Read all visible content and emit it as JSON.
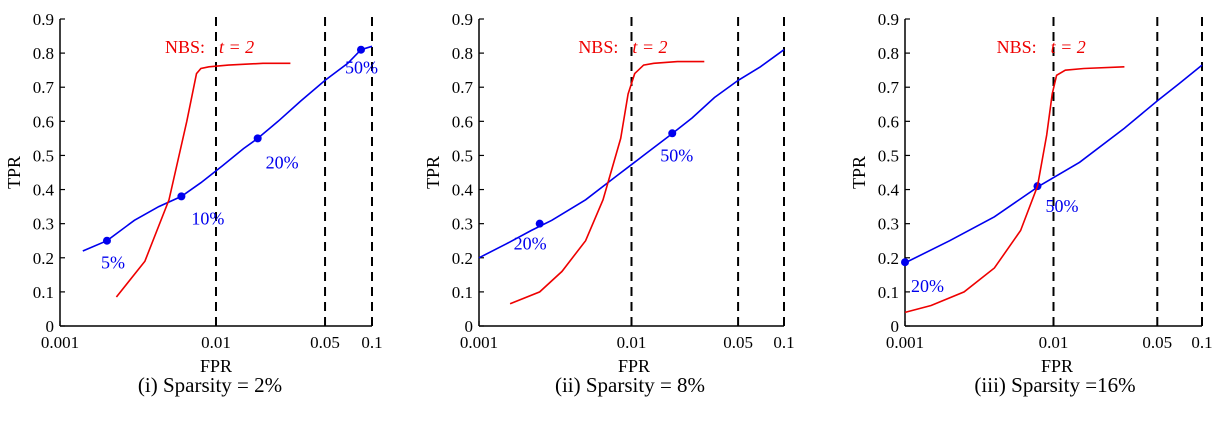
{
  "chart_data": [
    {
      "type": "line",
      "caption": "(i) Sparsity = 2%",
      "xlabel": "FPR",
      "ylabel": "TPR",
      "x_scale": "log",
      "xlim": [
        0.001,
        0.1
      ],
      "ylim": [
        0,
        0.9
      ],
      "x_ticks": [
        "0.001",
        "0.01",
        "0.05",
        "0.1"
      ],
      "y_ticks": [
        "0",
        "0.1",
        "0.2",
        "0.3",
        "0.4",
        "0.5",
        "0.6",
        "0.7",
        "0.8",
        "0.9"
      ],
      "vlines": [
        0.01,
        0.05,
        0.1
      ],
      "annotation": {
        "prefix": "NBS:",
        "t_label": "t = 2"
      },
      "series": [
        {
          "color": "#0000ee",
          "x": [
            0.0014,
            0.002,
            0.003,
            0.0043,
            0.006,
            0.008,
            0.011,
            0.015,
            0.0185,
            0.025,
            0.035,
            0.05,
            0.07,
            0.085,
            0.1
          ],
          "y": [
            0.22,
            0.25,
            0.31,
            0.35,
            0.38,
            0.42,
            0.47,
            0.52,
            0.55,
            0.6,
            0.66,
            0.72,
            0.77,
            0.81,
            0.82
          ],
          "markers": [
            {
              "x": 0.002,
              "y": 0.25,
              "label": "5%"
            },
            {
              "x": 0.006,
              "y": 0.38,
              "label": "10%"
            },
            {
              "x": 0.0185,
              "y": 0.55,
              "label": "20%"
            },
            {
              "x": 0.085,
              "y": 0.81,
              "label": "50%"
            }
          ]
        },
        {
          "color": "#ee0000",
          "x": [
            0.0023,
            0.0035,
            0.005,
            0.0065,
            0.0075,
            0.008,
            0.009,
            0.012,
            0.02,
            0.03
          ],
          "y": [
            0.085,
            0.19,
            0.37,
            0.6,
            0.74,
            0.755,
            0.76,
            0.765,
            0.77,
            0.77
          ]
        }
      ]
    },
    {
      "type": "line",
      "caption": "(ii) Sparsity = 8%",
      "xlabel": "FPR",
      "ylabel": "TPR",
      "x_scale": "log",
      "xlim": [
        0.001,
        0.1
      ],
      "ylim": [
        0,
        0.9
      ],
      "x_ticks": [
        "0.001",
        "0.01",
        "0.05",
        "0.1"
      ],
      "y_ticks": [
        "0",
        "0.1",
        "0.2",
        "0.3",
        "0.4",
        "0.5",
        "0.6",
        "0.7",
        "0.8",
        "0.9"
      ],
      "vlines": [
        0.01,
        0.05,
        0.1
      ],
      "annotation": {
        "prefix": "NBS:",
        "t_label": "t = 2"
      },
      "series": [
        {
          "color": "#0000ee",
          "x": [
            0.001,
            0.0015,
            0.0022,
            0.003,
            0.005,
            0.008,
            0.012,
            0.018,
            0.025,
            0.035,
            0.05,
            0.07,
            0.1
          ],
          "y": [
            0.2,
            0.24,
            0.28,
            0.31,
            0.37,
            0.44,
            0.5,
            0.56,
            0.61,
            0.67,
            0.72,
            0.76,
            0.81
          ],
          "markers": [
            {
              "x": 0.0025,
              "y": 0.3,
              "label": "20%"
            },
            {
              "x": 0.0185,
              "y": 0.565,
              "label": "50%"
            }
          ]
        },
        {
          "color": "#ee0000",
          "x": [
            0.0016,
            0.0025,
            0.0035,
            0.005,
            0.0065,
            0.0085,
            0.0095,
            0.0105,
            0.012,
            0.014,
            0.02,
            0.03
          ],
          "y": [
            0.065,
            0.1,
            0.16,
            0.25,
            0.37,
            0.55,
            0.68,
            0.74,
            0.765,
            0.77,
            0.775,
            0.775
          ]
        }
      ]
    },
    {
      "type": "line",
      "caption": "(iii) Sparsity =16%",
      "xlabel": "FPR",
      "ylabel": "TPR",
      "x_scale": "log",
      "xlim": [
        0.001,
        0.1
      ],
      "ylim": [
        0,
        0.9
      ],
      "x_ticks": [
        "0.001",
        "0.01",
        "0.05",
        "0.1"
      ],
      "y_ticks": [
        "0",
        "0.1",
        "0.2",
        "0.3",
        "0.4",
        "0.5",
        "0.6",
        "0.7",
        "0.8",
        "0.9"
      ],
      "vlines": [
        0.01,
        0.05,
        0.1
      ],
      "annotation": {
        "prefix": "NBS:",
        "t_label": "t = 2"
      },
      "series": [
        {
          "color": "#0000ee",
          "x": [
            0.001,
            0.002,
            0.004,
            0.008,
            0.015,
            0.03,
            0.05,
            0.07,
            0.1
          ],
          "y": [
            0.185,
            0.25,
            0.32,
            0.41,
            0.48,
            0.58,
            0.66,
            0.71,
            0.765
          ],
          "markers": [
            {
              "x": 0.001,
              "y": 0.187,
              "label": "20%"
            },
            {
              "x": 0.0078,
              "y": 0.41,
              "label": "50%"
            }
          ]
        },
        {
          "color": "#ee0000",
          "x": [
            0.001,
            0.0015,
            0.0025,
            0.004,
            0.006,
            0.0078,
            0.009,
            0.0098,
            0.0105,
            0.012,
            0.016,
            0.03
          ],
          "y": [
            0.04,
            0.06,
            0.1,
            0.17,
            0.28,
            0.41,
            0.56,
            0.68,
            0.735,
            0.75,
            0.755,
            0.76
          ]
        }
      ]
    }
  ]
}
